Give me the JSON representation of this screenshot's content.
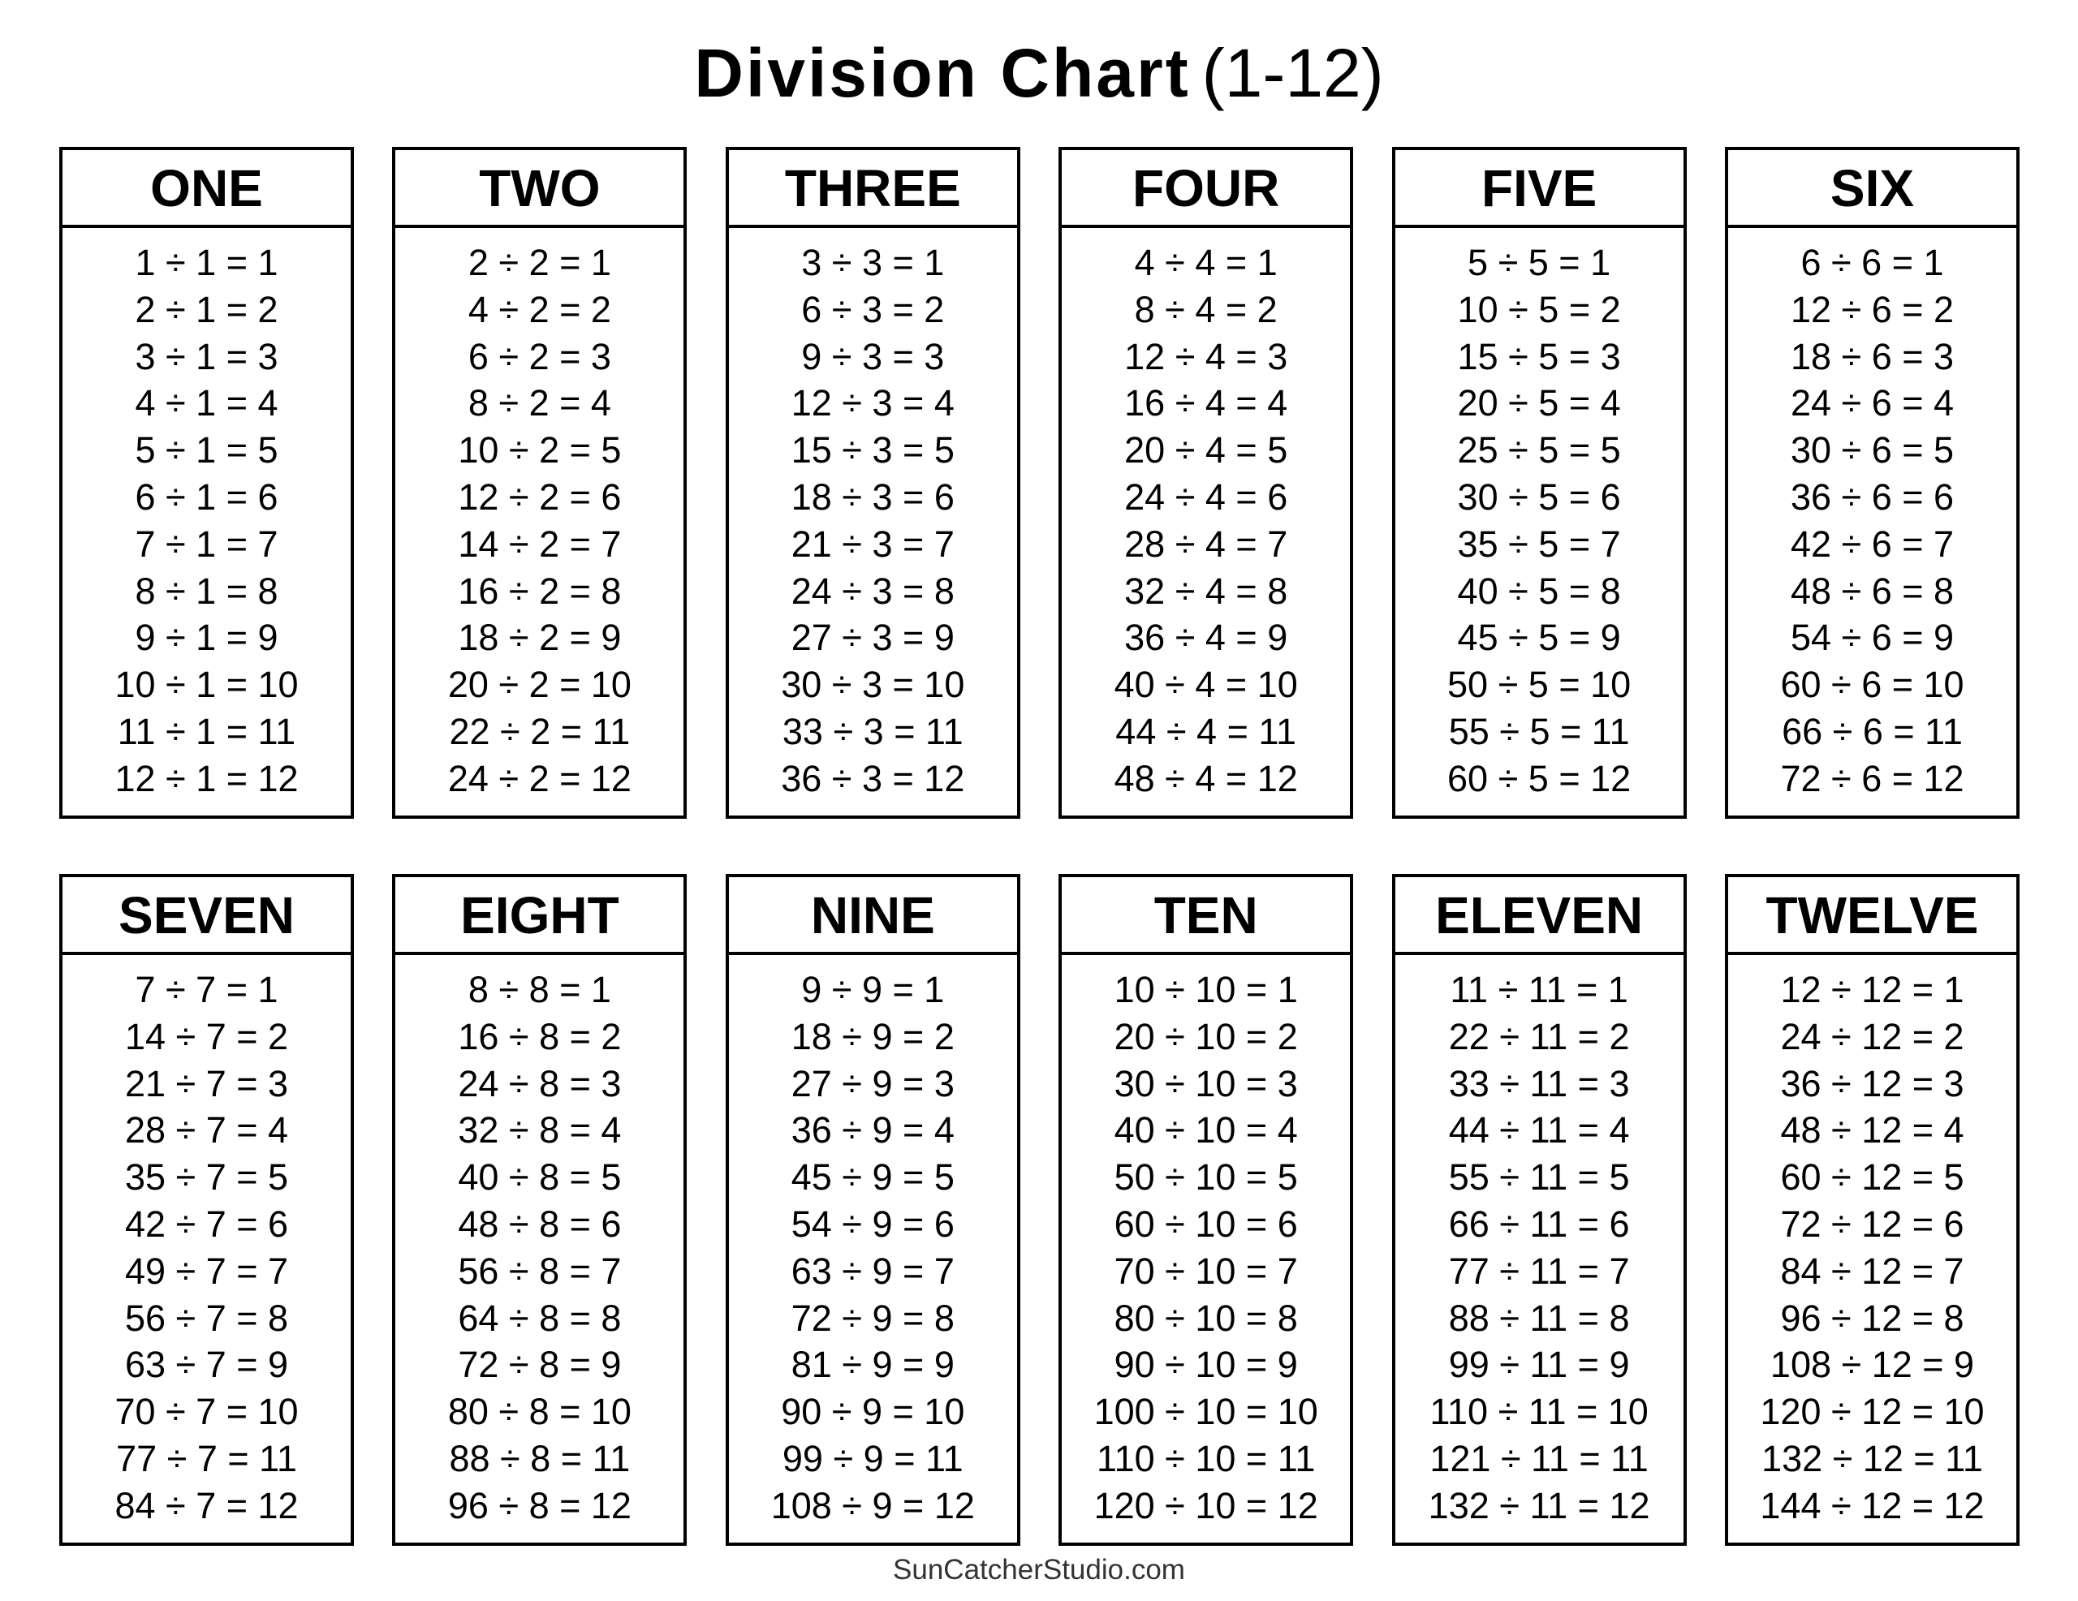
{
  "title": {
    "main": "Division Chart",
    "range": "(1-12)"
  },
  "footer": "SunCatcherStudio.com",
  "tables": [
    {
      "heading": "ONE",
      "rows": [
        "1 ÷ 1 = 1",
        "2 ÷ 1 = 2",
        "3 ÷ 1 = 3",
        "4 ÷ 1 = 4",
        "5 ÷ 1 = 5",
        "6 ÷ 1 = 6",
        "7 ÷ 1 = 7",
        "8 ÷ 1 = 8",
        "9 ÷ 1 = 9",
        "10 ÷ 1 = 10",
        "11 ÷ 1 = 11",
        "12 ÷ 1 = 12"
      ]
    },
    {
      "heading": "TWO",
      "rows": [
        "2 ÷ 2 = 1",
        "4 ÷ 2 = 2",
        "6 ÷ 2 = 3",
        "8 ÷ 2 = 4",
        "10 ÷ 2 = 5",
        "12 ÷ 2 = 6",
        "14 ÷ 2 = 7",
        "16 ÷ 2 = 8",
        "18 ÷ 2 = 9",
        "20 ÷ 2 = 10",
        "22 ÷ 2 = 11",
        "24 ÷ 2 = 12"
      ]
    },
    {
      "heading": "THREE",
      "rows": [
        "3 ÷ 3 = 1",
        "6 ÷ 3 = 2",
        "9 ÷ 3 = 3",
        "12 ÷ 3 = 4",
        "15 ÷ 3 = 5",
        "18 ÷ 3 = 6",
        "21 ÷ 3 = 7",
        "24 ÷ 3 = 8",
        "27 ÷ 3 = 9",
        "30 ÷ 3 = 10",
        "33 ÷ 3 = 11",
        "36 ÷ 3 = 12"
      ]
    },
    {
      "heading": "FOUR",
      "rows": [
        "4 ÷ 4 = 1",
        "8 ÷ 4 = 2",
        "12 ÷ 4 = 3",
        "16 ÷ 4 = 4",
        "20 ÷ 4 = 5",
        "24 ÷ 4 = 6",
        "28 ÷ 4 = 7",
        "32 ÷ 4 = 8",
        "36 ÷ 4 = 9",
        "40 ÷ 4 = 10",
        "44 ÷ 4 = 11",
        "48 ÷ 4 = 12"
      ]
    },
    {
      "heading": "FIVE",
      "rows": [
        "5 ÷ 5 = 1",
        "10 ÷ 5 = 2",
        "15 ÷ 5 = 3",
        "20 ÷ 5 = 4",
        "25 ÷ 5 = 5",
        "30 ÷ 5 = 6",
        "35 ÷ 5 = 7",
        "40 ÷ 5 = 8",
        "45 ÷ 5 = 9",
        "50 ÷ 5 = 10",
        "55 ÷ 5 = 11",
        "60 ÷ 5 = 12"
      ]
    },
    {
      "heading": "SIX",
      "rows": [
        "6 ÷ 6 = 1",
        "12 ÷ 6 = 2",
        "18 ÷ 6 = 3",
        "24 ÷ 6 = 4",
        "30 ÷ 6 = 5",
        "36 ÷ 6 = 6",
        "42 ÷ 6 = 7",
        "48 ÷ 6 = 8",
        "54 ÷ 6 = 9",
        "60 ÷ 6 = 10",
        "66 ÷ 6 = 11",
        "72 ÷ 6 = 12"
      ]
    },
    {
      "heading": "SEVEN",
      "rows": [
        "7 ÷ 7 = 1",
        "14 ÷ 7 = 2",
        "21 ÷ 7 = 3",
        "28 ÷ 7 = 4",
        "35 ÷ 7 = 5",
        "42 ÷ 7 = 6",
        "49 ÷ 7 = 7",
        "56 ÷ 7 = 8",
        "63 ÷ 7 = 9",
        "70 ÷ 7 = 10",
        "77 ÷ 7 = 11",
        "84 ÷ 7 = 12"
      ]
    },
    {
      "heading": "EIGHT",
      "rows": [
        "8 ÷ 8 = 1",
        "16 ÷ 8 = 2",
        "24 ÷ 8 = 3",
        "32 ÷ 8 = 4",
        "40 ÷ 8 = 5",
        "48 ÷ 8 = 6",
        "56 ÷ 8 = 7",
        "64 ÷ 8 = 8",
        "72 ÷ 8 = 9",
        "80 ÷ 8 = 10",
        "88 ÷ 8 = 11",
        "96 ÷ 8 = 12"
      ]
    },
    {
      "heading": "NINE",
      "rows": [
        "9 ÷ 9 = 1",
        "18 ÷ 9 = 2",
        "27 ÷ 9 = 3",
        "36 ÷ 9 = 4",
        "45 ÷ 9 = 5",
        "54 ÷ 9 = 6",
        "63 ÷ 9 = 7",
        "72 ÷ 9 = 8",
        "81 ÷ 9 = 9",
        "90 ÷ 9 = 10",
        "99 ÷ 9 = 11",
        "108 ÷ 9 = 12"
      ]
    },
    {
      "heading": "TEN",
      "rows": [
        "10 ÷ 10 = 1",
        "20 ÷ 10 = 2",
        "30 ÷ 10 = 3",
        "40 ÷ 10 = 4",
        "50 ÷ 10 = 5",
        "60 ÷ 10 = 6",
        "70 ÷ 10 = 7",
        "80 ÷ 10 = 8",
        "90 ÷ 10 = 9",
        "100 ÷ 10 = 10",
        "110 ÷ 10 = 11",
        "120 ÷ 10 = 12"
      ]
    },
    {
      "heading": "ELEVEN",
      "rows": [
        "11 ÷ 11 = 1",
        "22 ÷ 11 = 2",
        "33 ÷ 11 = 3",
        "44 ÷ 11 = 4",
        "55 ÷ 11 = 5",
        "66 ÷ 11 = 6",
        "77 ÷ 11 = 7",
        "88 ÷ 11 = 8",
        "99 ÷ 11 = 9",
        "110 ÷ 11 = 10",
        "121 ÷ 11 = 11",
        "132 ÷ 11 = 12"
      ]
    },
    {
      "heading": "TWELVE",
      "rows": [
        "12 ÷ 12 = 1",
        "24 ÷ 12 = 2",
        "36 ÷ 12 = 3",
        "48 ÷ 12 = 4",
        "60 ÷ 12 = 5",
        "72 ÷ 12 = 6",
        "84 ÷ 12 = 7",
        "96 ÷ 12 = 8",
        "108 ÷ 12 = 9",
        "120 ÷ 12 = 10",
        "132 ÷ 12 = 11",
        "144 ÷ 12 = 12"
      ]
    }
  ]
}
